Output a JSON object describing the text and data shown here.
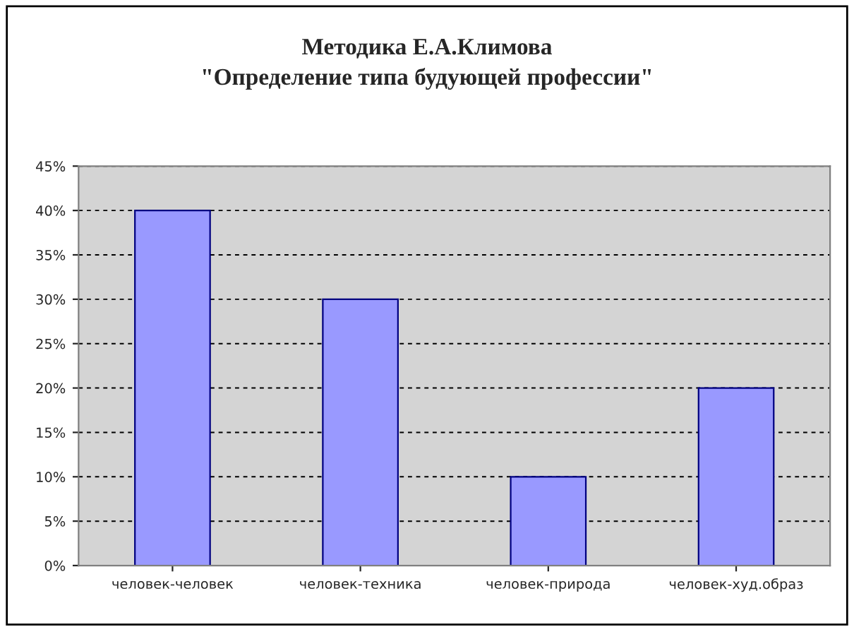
{
  "chart_data": {
    "type": "bar",
    "title": "Методика Е.А.Климова\n\"Определение типа будующей профессии\"",
    "categories": [
      "человек-человек",
      "человек-техника",
      "человек-природа",
      "человек-худ.образ"
    ],
    "values": [
      40,
      30,
      10,
      20
    ],
    "color": "#9999ff",
    "ylim": [
      0,
      45
    ],
    "yticks": [
      {
        "value": 0,
        "label": "0%"
      },
      {
        "value": 5,
        "label": "5%"
      },
      {
        "value": 10,
        "label": "10%"
      },
      {
        "value": 15,
        "label": "15%"
      },
      {
        "value": 20,
        "label": "20%"
      },
      {
        "value": 25,
        "label": "25%"
      },
      {
        "value": 30,
        "label": "30%"
      },
      {
        "value": 35,
        "label": "35%"
      },
      {
        "value": 40,
        "label": "40%"
      },
      {
        "value": 45,
        "label": "45%"
      }
    ],
    "grid": "y",
    "legend": false
  }
}
